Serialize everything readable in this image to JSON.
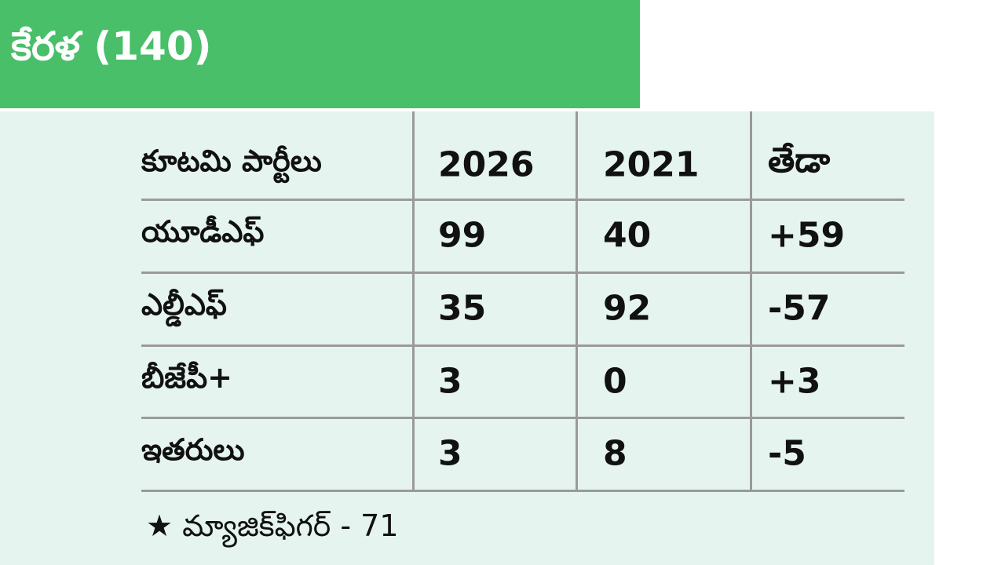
{
  "header": {
    "title": "కేరళ (140)"
  },
  "table": {
    "columns": [
      "కూటమి పార్టీలు",
      "2026",
      "2021",
      "తేడా"
    ],
    "rows": [
      [
        "యూడీఎఫ్",
        "99",
        "40",
        "+59"
      ],
      [
        "ఎల్డీఎఫ్",
        "35",
        "92",
        "-57"
      ],
      [
        "బీజేపీ+",
        "3",
        "0",
        "+3"
      ],
      [
        "ఇతరులు",
        "3",
        "8",
        "-5"
      ]
    ]
  },
  "footnote": "★ మ్యాజిక్‌ఫిగర్ - 71"
}
